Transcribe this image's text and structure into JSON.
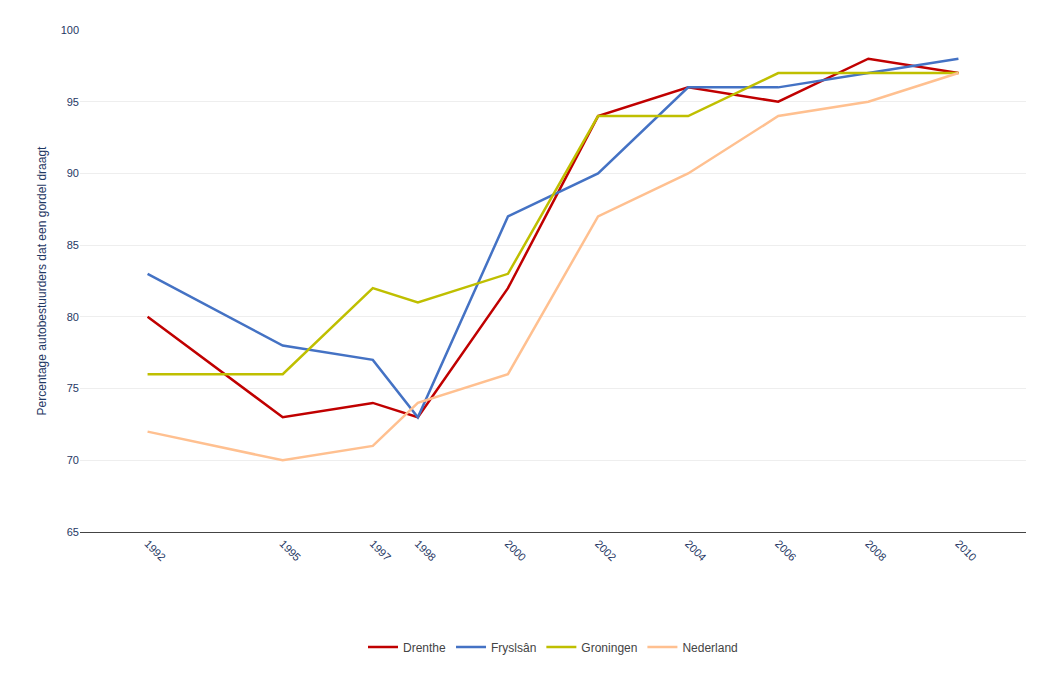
{
  "chart_data": {
    "type": "line",
    "y_label": "Percentage autobestuurders dat een gordel draagt",
    "x": [
      1992,
      1995,
      1997,
      1998,
      2000,
      2002,
      2004,
      2006,
      2008,
      2010
    ],
    "series": [
      {
        "name": "Drenthe",
        "color": "#C00000",
        "values": [
          80,
          73,
          74,
          73,
          82,
          94,
          96,
          95,
          98,
          97
        ]
      },
      {
        "name": "Fryslsân",
        "color": "#4472C4",
        "values": [
          83,
          78,
          77,
          73,
          87,
          90,
          96,
          96,
          97,
          98
        ]
      },
      {
        "name": "Groningen",
        "color": "#BFBF00",
        "values": [
          76,
          76,
          82,
          81,
          83,
          94,
          94,
          97,
          97,
          97
        ]
      },
      {
        "name": "Nederland",
        "color": "#FFC090",
        "values": [
          72,
          70,
          71,
          74,
          76,
          87,
          90,
          94,
          95,
          97
        ]
      }
    ],
    "xlim": [
      1990.5,
      2011.5
    ],
    "xticks": [
      1992,
      1995,
      1997,
      1998,
      2000,
      2002,
      2004,
      2006,
      2008,
      2010
    ],
    "ylim": [
      65,
      100
    ],
    "yticks": [
      65,
      70,
      75,
      80,
      85,
      90,
      95,
      100
    ],
    "grid": "y",
    "legend": "bottom"
  }
}
